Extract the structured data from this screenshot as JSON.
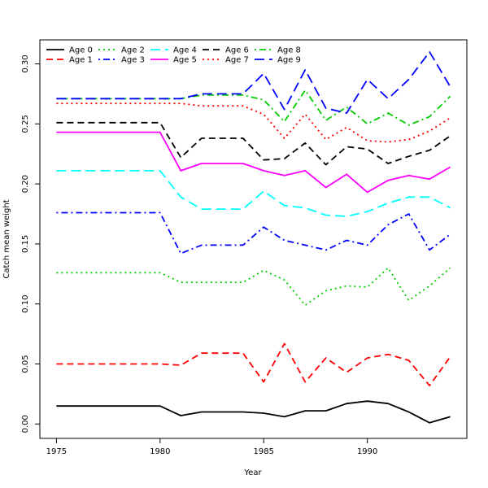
{
  "chart_data": {
    "type": "line",
    "title": "",
    "xlabel": "Year",
    "ylabel": "Catch mean weight",
    "xlim": [
      1974.2,
      1994.8
    ],
    "ylim": [
      -0.012,
      0.32
    ],
    "x_ticks": [
      1975,
      1980,
      1985,
      1990
    ],
    "y_ticks": [
      0.0,
      0.05,
      0.1,
      0.15,
      0.2,
      0.25,
      0.3
    ],
    "y_tick_labels": [
      "0.00",
      "0.05",
      "0.10",
      "0.15",
      "0.20",
      "0.25",
      "0.30"
    ],
    "legend_position": "top-left",
    "grid": false,
    "x": [
      1975,
      1976,
      1977,
      1978,
      1979,
      1980,
      1981,
      1982,
      1983,
      1984,
      1985,
      1986,
      1987,
      1988,
      1989,
      1990,
      1991,
      1992,
      1993,
      1994
    ],
    "series": [
      {
        "name": "Age 0",
        "color": "#000000",
        "dash": "solid",
        "values": [
          0.015,
          0.015,
          0.015,
          0.015,
          0.015,
          0.015,
          0.007,
          0.01,
          0.01,
          0.01,
          0.009,
          0.006,
          0.011,
          0.011,
          0.017,
          0.019,
          0.017,
          0.01,
          0.001,
          0.006
        ]
      },
      {
        "name": "Age 1",
        "color": "#ff0000",
        "dash": "dashed",
        "values": [
          0.05,
          0.05,
          0.05,
          0.05,
          0.05,
          0.05,
          0.049,
          0.059,
          0.059,
          0.059,
          0.035,
          0.067,
          0.035,
          0.055,
          0.043,
          0.055,
          0.058,
          0.053,
          0.032,
          0.056
        ]
      },
      {
        "name": "Age 2",
        "color": "#00cd00",
        "dash": "dotted",
        "values": [
          0.126,
          0.126,
          0.126,
          0.126,
          0.126,
          0.126,
          0.118,
          0.118,
          0.118,
          0.118,
          0.128,
          0.12,
          0.099,
          0.111,
          0.115,
          0.114,
          0.13,
          0.103,
          0.115,
          0.13
        ]
      },
      {
        "name": "Age 3",
        "color": "#0000ff",
        "dash": "dotdash",
        "values": [
          0.176,
          0.176,
          0.176,
          0.176,
          0.176,
          0.176,
          0.142,
          0.149,
          0.149,
          0.149,
          0.164,
          0.153,
          0.149,
          0.145,
          0.153,
          0.149,
          0.166,
          0.175,
          0.145,
          0.158
        ]
      },
      {
        "name": "Age 4",
        "color": "#00ffff",
        "dash": "longdash",
        "values": [
          0.211,
          0.211,
          0.211,
          0.211,
          0.211,
          0.211,
          0.189,
          0.179,
          0.179,
          0.179,
          0.194,
          0.182,
          0.18,
          0.174,
          0.173,
          0.177,
          0.184,
          0.189,
          0.189,
          0.18
        ]
      },
      {
        "name": "Age 5",
        "color": "#ff00ff",
        "dash": "solid",
        "values": [
          0.243,
          0.243,
          0.243,
          0.243,
          0.243,
          0.243,
          0.211,
          0.217,
          0.217,
          0.217,
          0.211,
          0.207,
          0.211,
          0.197,
          0.208,
          0.193,
          0.203,
          0.207,
          0.204,
          0.214
        ]
      },
      {
        "name": "Age 6",
        "color": "#000000",
        "dash": "dashed",
        "values": [
          0.251,
          0.251,
          0.251,
          0.251,
          0.251,
          0.251,
          0.222,
          0.238,
          0.238,
          0.238,
          0.22,
          0.221,
          0.234,
          0.216,
          0.231,
          0.229,
          0.217,
          0.223,
          0.228,
          0.24
        ]
      },
      {
        "name": "Age 7",
        "color": "#ff0000",
        "dash": "dotted",
        "values": [
          0.267,
          0.267,
          0.267,
          0.267,
          0.267,
          0.267,
          0.267,
          0.265,
          0.265,
          0.265,
          0.258,
          0.238,
          0.258,
          0.237,
          0.247,
          0.236,
          0.235,
          0.237,
          0.244,
          0.255
        ]
      },
      {
        "name": "Age 8",
        "color": "#00cd00",
        "dash": "dotdash",
        "values": [
          0.271,
          0.271,
          0.271,
          0.271,
          0.271,
          0.271,
          0.271,
          0.274,
          0.274,
          0.274,
          0.27,
          0.252,
          0.278,
          0.253,
          0.264,
          0.25,
          0.259,
          0.249,
          0.256,
          0.273
        ]
      },
      {
        "name": "Age 9",
        "color": "#0000ff",
        "dash": "longdash",
        "values": [
          0.271,
          0.271,
          0.271,
          0.271,
          0.271,
          0.271,
          0.271,
          0.275,
          0.275,
          0.275,
          0.292,
          0.262,
          0.295,
          0.263,
          0.259,
          0.287,
          0.271,
          0.287,
          0.31,
          0.281
        ]
      }
    ]
  }
}
